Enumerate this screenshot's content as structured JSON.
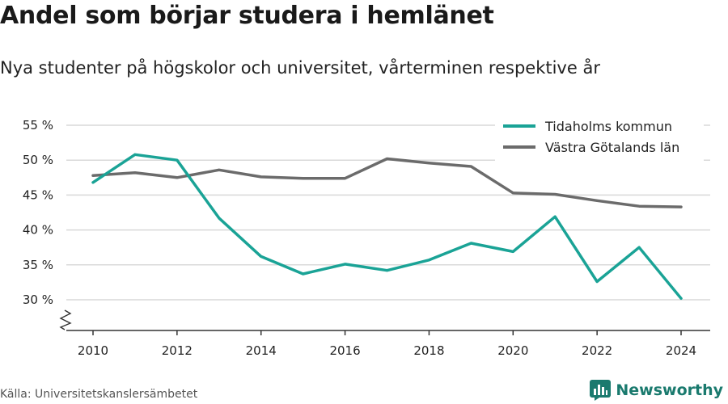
{
  "title": "Andel som börjar studera i hemlänet",
  "subtitle": "Nya studenter på högskolor och universitet, vårterminen respektive år",
  "source": "Källa: Universitetskanslersämbetet",
  "brand": {
    "name": "Newsworthy",
    "icon": "bar-chart-logo-icon",
    "color": "#1a7a6e"
  },
  "chart_data": {
    "type": "line",
    "x": [
      2010,
      2011,
      2012,
      2013,
      2014,
      2015,
      2016,
      2017,
      2018,
      2019,
      2020,
      2021,
      2022,
      2023,
      2024
    ],
    "series": [
      {
        "name": "Tidaholms kommun",
        "color": "#1aa396",
        "values": [
          46.8,
          50.8,
          50.0,
          41.7,
          36.2,
          33.7,
          35.1,
          34.2,
          35.7,
          38.1,
          36.9,
          41.9,
          32.6,
          37.5,
          30.2
        ]
      },
      {
        "name": "Västra Götalands län",
        "color": "#6b6b6b",
        "values": [
          47.8,
          48.2,
          47.5,
          48.6,
          47.6,
          47.4,
          47.4,
          50.2,
          49.6,
          49.1,
          45.3,
          45.1,
          44.2,
          43.4,
          43.3
        ]
      }
    ],
    "x_ticks": [
      2010,
      2012,
      2014,
      2016,
      2018,
      2020,
      2022,
      2024
    ],
    "y_ticks": [
      {
        "value": 30,
        "label": "30 %"
      },
      {
        "value": 35,
        "label": "35 %"
      },
      {
        "value": 40,
        "label": "40 %"
      },
      {
        "value": 45,
        "label": "45 %"
      },
      {
        "value": 50,
        "label": "50 %"
      },
      {
        "value": 55,
        "label": "55 %"
      }
    ],
    "ylim": [
      30,
      55
    ],
    "y_axis_break": true,
    "grid": true,
    "legend": "top-right"
  }
}
